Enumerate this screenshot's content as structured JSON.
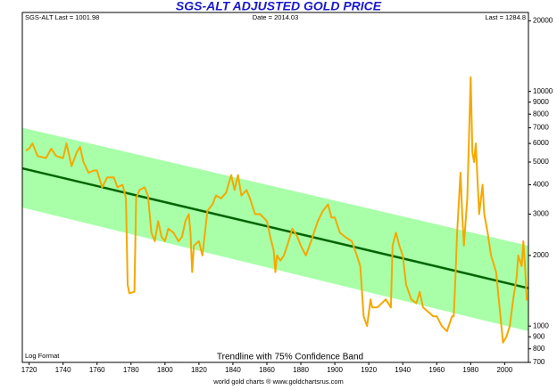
{
  "chart_data": {
    "type": "line",
    "title": "SGS-ALT ADJUSTED  GOLD PRICE",
    "annotations": [
      "SGS-ALT Last = 1001.98",
      "Date = 2014.03",
      "Last = 1284.8",
      "Log Format",
      "Trendline with 75% Confidence Band"
    ],
    "source": "world gold charts ® www.goldchartsrus.com",
    "log_scale": true,
    "xlim": [
      1716,
      2014
    ],
    "xticks": [
      1720,
      1740,
      1760,
      1780,
      1800,
      1820,
      1840,
      1860,
      1880,
      1900,
      1920,
      1940,
      1960,
      1980,
      2000
    ],
    "ylim": [
      700,
      21700
    ],
    "yticks": [
      700,
      800,
      900,
      1000,
      2000,
      3000,
      4000,
      5000,
      6000,
      7000,
      8000,
      9000,
      10000,
      20000
    ],
    "trendline": {
      "x": [
        1716,
        2014
      ],
      "values": [
        4700,
        1450
      ],
      "color": "#006400"
    },
    "band": {
      "x": [
        1716,
        2014
      ],
      "upper": [
        7000,
        2200
      ],
      "lower": [
        3200,
        950
      ],
      "color": "#a8ffa8"
    },
    "series": [
      {
        "color": "#f5a800",
        "x": [
          1718,
          1720,
          1722,
          1725,
          1730,
          1733,
          1736,
          1740,
          1742,
          1745,
          1748,
          1750,
          1752,
          1755,
          1758,
          1760,
          1763,
          1766,
          1770,
          1772,
          1775,
          1777,
          1778,
          1779,
          1782,
          1783,
          1785,
          1788,
          1790,
          1792,
          1794,
          1796,
          1798,
          1800,
          1802,
          1805,
          1808,
          1810,
          1812,
          1814,
          1815,
          1816,
          1817,
          1820,
          1822,
          1825,
          1828,
          1830,
          1833,
          1836,
          1839,
          1841,
          1843,
          1845,
          1848,
          1850,
          1853,
          1856,
          1860,
          1862,
          1864,
          1865,
          1866,
          1868,
          1870,
          1872,
          1875,
          1878,
          1880,
          1883,
          1886,
          1890,
          1893,
          1896,
          1898,
          1900,
          1903,
          1906,
          1910,
          1913,
          1915,
          1917,
          1919,
          1921,
          1922,
          1925,
          1930,
          1933,
          1934,
          1936,
          1938,
          1940,
          1942,
          1945,
          1948,
          1950,
          1952,
          1955,
          1958,
          1960,
          1963,
          1966,
          1969,
          1970,
          1971,
          1972,
          1974,
          1975,
          1976,
          1978,
          1980,
          1981,
          1982,
          1983,
          1985,
          1987,
          1988,
          1990,
          1992,
          1995,
          1997,
          1999,
          2001,
          2003,
          2005,
          2007,
          2008,
          2010,
          2011,
          2012,
          2013
        ],
        "values": [
          5600,
          5700,
          6000,
          5300,
          5200,
          5700,
          5300,
          5200,
          6000,
          4800,
          5500,
          5800,
          5000,
          4500,
          4600,
          4600,
          3900,
          4300,
          4300,
          3900,
          4000,
          3500,
          1500,
          1380,
          1400,
          3500,
          3800,
          3900,
          3600,
          2500,
          2300,
          2800,
          2400,
          2300,
          2600,
          2500,
          2300,
          2400,
          2800,
          3000,
          2500,
          1700,
          2200,
          2300,
          2000,
          3100,
          3300,
          3600,
          3500,
          3700,
          4400,
          3800,
          4400,
          3600,
          3800,
          3500,
          3000,
          3000,
          2800,
          2400,
          2100,
          1700,
          2000,
          1900,
          2000,
          2200,
          2600,
          2400,
          2200,
          2000,
          2300,
          2800,
          3100,
          3300,
          2900,
          2900,
          2500,
          2400,
          2300,
          2000,
          1800,
          1100,
          1000,
          1300,
          1200,
          1200,
          1300,
          1200,
          2200,
          2500,
          2200,
          2000,
          1500,
          1300,
          1250,
          1400,
          1200,
          1150,
          1100,
          1100,
          1000,
          950,
          1100,
          1100,
          1600,
          2500,
          4500,
          3000,
          2200,
          3500,
          11500,
          5500,
          5000,
          6000,
          3000,
          4000,
          3000,
          2500,
          2000,
          1700,
          1200,
          850,
          900,
          1000,
          1300,
          1600,
          2000,
          1800,
          2300,
          1800,
          1285
        ]
      }
    ]
  }
}
